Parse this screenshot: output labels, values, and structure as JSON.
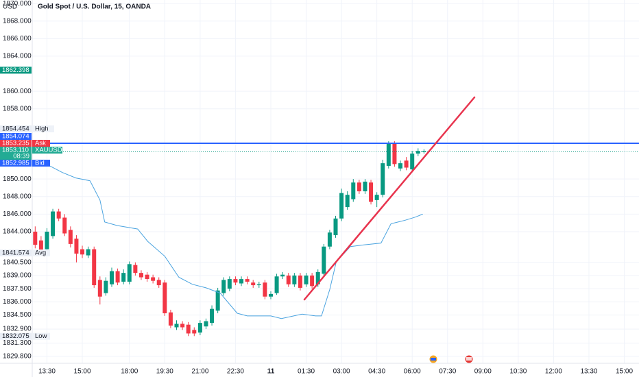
{
  "chart_data": {
    "type": "candlestick",
    "title": "Gold Spot / U.S. Dollar, 15, OANDA",
    "currency": "USD",
    "up_color": "#089981",
    "down_color": "#f23645",
    "xlim": [
      -0.5,
      102.5
    ],
    "ylim": [
      1829.0,
      1870.4
    ],
    "yticks": [
      {
        "value": 1870,
        "label": "1870.000"
      },
      {
        "value": 1868,
        "label": "1868.000"
      },
      {
        "value": 1866,
        "label": "1866.000"
      },
      {
        "value": 1864,
        "label": "1864.000"
      },
      {
        "value": 1860,
        "label": "1860.000"
      },
      {
        "value": 1858,
        "label": "1858.000"
      },
      {
        "value": 1850,
        "label": "1850.000"
      },
      {
        "value": 1848,
        "label": "1848.000"
      },
      {
        "value": 1846,
        "label": "1846.000"
      },
      {
        "value": 1844,
        "label": "1844.000"
      },
      {
        "value": 1840.5,
        "label": "1840.500"
      },
      {
        "value": 1839,
        "label": "1839.000"
      },
      {
        "value": 1837.5,
        "label": "1837.500"
      },
      {
        "value": 1836,
        "label": "1836.000"
      },
      {
        "value": 1834.5,
        "label": "1834.500"
      },
      {
        "value": 1832.9,
        "label": "1832.900"
      },
      {
        "value": 1831.3,
        "label": "1831.300"
      },
      {
        "value": 1829.8,
        "label": "1829.800"
      }
    ],
    "xticks": [
      {
        "value": 2,
        "label": "13:30"
      },
      {
        "value": 8,
        "label": "15:00"
      },
      {
        "value": 16,
        "label": "18:00"
      },
      {
        "value": 22,
        "label": "19:30"
      },
      {
        "value": 28,
        "label": "21:00"
      },
      {
        "value": 34,
        "label": "22:30"
      },
      {
        "value": 40,
        "label": "11"
      },
      {
        "value": 46,
        "label": "01:30"
      },
      {
        "value": 52,
        "label": "03:00"
      },
      {
        "value": 58,
        "label": "04:30"
      },
      {
        "value": 64,
        "label": "06:00"
      },
      {
        "value": 70,
        "label": "07:30"
      },
      {
        "value": 76,
        "label": "09:00"
      },
      {
        "value": 82,
        "label": "10:30"
      },
      {
        "value": 88,
        "label": "12:00"
      },
      {
        "value": 94,
        "label": "13:30"
      },
      {
        "value": 100,
        "label": "15:00"
      }
    ],
    "open": [
      1844.0,
      1843.0,
      1842.0,
      1843.5,
      1846.3,
      1845.6,
      1844.2,
      1843.2,
      1842.0,
      1841.3,
      1842.0,
      1838.5,
      1837.0,
      1838.0,
      1839.5,
      1838.3,
      1838.3,
      1840.2,
      1839.3,
      1839.1,
      1838.8,
      1838.5,
      1838.2,
      1834.8,
      1833.1,
      1833.5,
      1833.4,
      1832.8,
      1832.5,
      1833.2,
      1833.6,
      1835.0,
      1837.0,
      1837.5,
      1838.6,
      1838.1,
      1838.6,
      1838.2,
      1837.9,
      1838.2,
      1836.6,
      1837.0,
      1838.9,
      1839.0,
      1838.0,
      1839.0,
      1838.0,
      1839.0,
      1838.0,
      1839.2,
      1842.3,
      1843.6,
      1845.5,
      1846.8,
      1847.7,
      1849.6,
      1848.6,
      1849.6,
      1847.6,
      1848.2,
      1851.5,
      1854.1,
      1851.2,
      1852.1,
      1851.1,
      1852.9,
      1853.1
    ],
    "high": [
      1844.6,
      1843.5,
      1844.4,
      1846.6,
      1846.6,
      1846.0,
      1844.6,
      1843.6,
      1842.4,
      1842.3,
      1842.3,
      1838.9,
      1838.8,
      1839.9,
      1839.8,
      1839.7,
      1840.6,
      1840.5,
      1839.6,
      1839.4,
      1839.1,
      1838.8,
      1838.5,
      1835.1,
      1833.9,
      1833.8,
      1833.7,
      1833.1,
      1833.9,
      1834.1,
      1835.6,
      1837.6,
      1838.8,
      1838.9,
      1838.9,
      1838.9,
      1838.9,
      1838.5,
      1838.3,
      1838.5,
      1837.2,
      1839.2,
      1839.4,
      1839.3,
      1839.3,
      1839.3,
      1839.3,
      1839.3,
      1839.7,
      1842.6,
      1844.2,
      1845.8,
      1848.9,
      1848.6,
      1850.0,
      1849.9,
      1850.0,
      1849.9,
      1848.5,
      1852.2,
      1854.3,
      1854.3,
      1852.1,
      1852.5,
      1853.2,
      1853.5,
      1853.4
    ],
    "low": [
      1842.1,
      1841.2,
      1841.7,
      1843.2,
      1845.2,
      1843.5,
      1842.2,
      1840.5,
      1841.0,
      1841.0,
      1837.6,
      1835.7,
      1836.7,
      1837.7,
      1837.9,
      1838.0,
      1838.0,
      1839.0,
      1838.5,
      1838.3,
      1838.1,
      1837.6,
      1834.4,
      1833.0,
      1832.8,
      1832.8,
      1832.1,
      1832.1,
      1832.2,
      1832.9,
      1833.3,
      1834.7,
      1836.7,
      1837.2,
      1837.9,
      1837.8,
      1838.0,
      1837.6,
      1837.6,
      1836.3,
      1836.3,
      1836.8,
      1838.6,
      1837.7,
      1837.7,
      1837.3,
      1837.7,
      1837.5,
      1837.7,
      1839.0,
      1842.0,
      1843.3,
      1845.2,
      1846.5,
      1847.4,
      1848.3,
      1848.3,
      1847.1,
      1846.8,
      1847.9,
      1851.2,
      1851.4,
      1850.9,
      1851.0,
      1850.8,
      1852.6,
      1852.9
    ],
    "close": [
      1842.5,
      1841.5,
      1844.0,
      1846.3,
      1845.5,
      1843.8,
      1842.6,
      1841.5,
      1841.4,
      1842.0,
      1837.9,
      1836.6,
      1838.4,
      1839.5,
      1838.2,
      1839.3,
      1840.3,
      1839.3,
      1838.8,
      1838.6,
      1838.4,
      1837.9,
      1834.7,
      1833.3,
      1833.5,
      1833.1,
      1832.4,
      1832.4,
      1833.6,
      1833.8,
      1835.2,
      1837.3,
      1838.5,
      1838.6,
      1838.2,
      1838.6,
      1838.3,
      1837.9,
      1838.0,
      1836.6,
      1836.9,
      1838.9,
      1839.1,
      1838.0,
      1839.0,
      1837.6,
      1839.0,
      1837.8,
      1839.4,
      1842.3,
      1843.9,
      1845.5,
      1848.4,
      1848.2,
      1849.6,
      1848.6,
      1849.7,
      1847.4,
      1848.2,
      1851.8,
      1854.1,
      1851.7,
      1851.8,
      1851.3,
      1852.9,
      1853.2,
      1853.2
    ],
    "avg_line": {
      "color": "#4aa3df",
      "x": [
        -0.3,
        1.7,
        4.6,
        6.9,
        9.3,
        11,
        11.8,
        13.9,
        17.4,
        19.1,
        22,
        24.4,
        26.7,
        29,
        31.4,
        34.3,
        36,
        40,
        41.8,
        45.3,
        47.6,
        48.6,
        50,
        51.1,
        53.5,
        55.8,
        58.7,
        60.4,
        61.6,
        62.8,
        64.5,
        65.8
      ],
      "values": [
        1852.16,
        1851.76,
        1850.75,
        1850.12,
        1849.8,
        1847.6,
        1845.1,
        1844.7,
        1844.3,
        1842.9,
        1841.2,
        1838.8,
        1838.0,
        1837.6,
        1837.0,
        1834.7,
        1834.4,
        1834.4,
        1834.1,
        1834.6,
        1834.4,
        1834.4,
        1837.4,
        1840.55,
        1842.3,
        1842.5,
        1842.7,
        1844.9,
        1845.1,
        1845.3,
        1845.65,
        1846.0
      ]
    },
    "horizontal_line": {
      "value": 1854.074,
      "color": "#2962ff"
    },
    "last_price_line": {
      "value": 1853.11,
      "color": "#089981"
    },
    "countdown": "08:39",
    "price_tags": [
      {
        "value": 1862.398,
        "value_label": "1862.398",
        "color": "#089981"
      },
      {
        "name": "High",
        "value": 1854.454,
        "value_label": "1854.454",
        "color": "#e9eef6"
      },
      {
        "value": 1854.074,
        "value_label": "1854.074",
        "color": "#2962ff"
      },
      {
        "name": "Ask",
        "value": 1853.235,
        "value_label": "1853.235",
        "color": "#f23645"
      },
      {
        "name": "XAUUSD",
        "value": 1853.11,
        "value_label": "1853.110",
        "color": "#22ab94"
      },
      {
        "name": "Bid",
        "value": 1852.985,
        "value_label": "1852.985",
        "color": "#2962ff"
      },
      {
        "name": "Avg",
        "value": 1841.574,
        "value_label": "1841.574",
        "color": "#e9eef6"
      },
      {
        "name": "Low",
        "value": 1832.075,
        "value_label": "1832.075",
        "color": "#e9eef6"
      }
    ]
  }
}
